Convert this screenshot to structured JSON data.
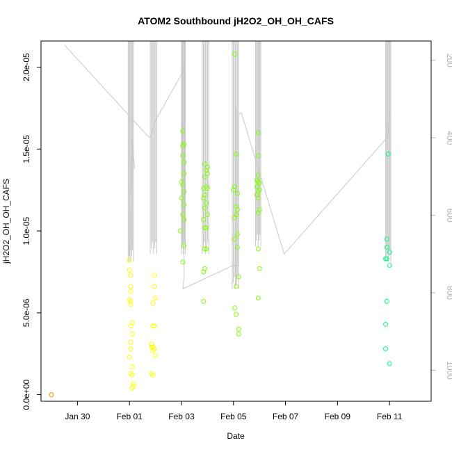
{
  "chart_data": {
    "type": "scatter",
    "title": "ATOM2 Southbound jH2O2_OH_OH_CAFS",
    "xlabel": "Date",
    "ylabel": "jH2O2_OH_OH_CAFS",
    "x_ticks": [
      "Jan 30",
      "Feb 01",
      "Feb 03",
      "Feb 05",
      "Feb 07",
      "Feb 09",
      "Feb 11"
    ],
    "x_tick_days": [
      30,
      32,
      34,
      36,
      38,
      40,
      42
    ],
    "xlim_days": [
      28.6,
      43.6
    ],
    "y_ticks": [
      "0.0e+00",
      "5.0e-06",
      "1.0e-05",
      "1.5e-05",
      "2.0e-05"
    ],
    "y_tick_values": [
      0,
      5e-06,
      1e-05,
      1.5e-05,
      2e-05
    ],
    "ylim": [
      -4e-07,
      2.16e-05
    ],
    "right_axis": {
      "ticks": [
        "200",
        "400",
        "600",
        "800",
        "1000"
      ],
      "tick_values": [
        200,
        400,
        600,
        800,
        1000
      ],
      "ylim": [
        1080,
        150
      ],
      "color": "#b0b0b0"
    },
    "grid": false,
    "legend": "none",
    "marker": "open-circle",
    "color_scale": [
      "#ff8c00",
      "#ffff00",
      "#80ff00",
      "#00ff80",
      "#00ffc0"
    ],
    "secondary_line_color": "#c8c8c8",
    "points": [
      {
        "x": 29.0,
        "y": 0.0,
        "c": 0
      },
      {
        "x": 32.0,
        "y": 8.2e-06,
        "c": 1
      },
      {
        "x": 32.0,
        "y": 7.6e-06,
        "c": 1
      },
      {
        "x": 32.05,
        "y": 7.3e-06,
        "c": 1
      },
      {
        "x": 32.05,
        "y": 6.6e-06,
        "c": 1
      },
      {
        "x": 32.05,
        "y": 6.3e-06,
        "c": 1
      },
      {
        "x": 32.0,
        "y": 5.8e-06,
        "c": 1
      },
      {
        "x": 32.05,
        "y": 5.7e-06,
        "c": 1
      },
      {
        "x": 32.05,
        "y": 5.5e-06,
        "c": 1
      },
      {
        "x": 32.1,
        "y": 4.4e-06,
        "c": 1
      },
      {
        "x": 32.05,
        "y": 4.2e-06,
        "c": 1
      },
      {
        "x": 32.1,
        "y": 3.7e-06,
        "c": 1
      },
      {
        "x": 32.05,
        "y": 3.2e-06,
        "c": 1
      },
      {
        "x": 32.05,
        "y": 2.8e-06,
        "c": 1
      },
      {
        "x": 32.0,
        "y": 2.3e-06,
        "c": 1
      },
      {
        "x": 32.1,
        "y": 1.7e-06,
        "c": 1
      },
      {
        "x": 32.05,
        "y": 1.3e-06,
        "c": 1
      },
      {
        "x": 32.1,
        "y": 1.2e-06,
        "c": 1
      },
      {
        "x": 32.15,
        "y": 7e-07,
        "c": 1
      },
      {
        "x": 32.15,
        "y": 5e-07,
        "c": 1
      },
      {
        "x": 32.1,
        "y": 4e-07,
        "c": 1
      },
      {
        "x": 32.95,
        "y": 7.3e-06,
        "c": 1
      },
      {
        "x": 32.95,
        "y": 6.6e-06,
        "c": 1
      },
      {
        "x": 33.0,
        "y": 5.9e-06,
        "c": 1
      },
      {
        "x": 32.9,
        "y": 5.6e-06,
        "c": 1
      },
      {
        "x": 32.9,
        "y": 4.2e-06,
        "c": 1
      },
      {
        "x": 32.95,
        "y": 4.2e-06,
        "c": 1
      },
      {
        "x": 32.85,
        "y": 3.1e-06,
        "c": 1
      },
      {
        "x": 32.9,
        "y": 2.9e-06,
        "c": 1
      },
      {
        "x": 32.95,
        "y": 2.8e-06,
        "c": 1
      },
      {
        "x": 32.85,
        "y": 2.9e-06,
        "c": 1
      },
      {
        "x": 32.9,
        "y": 2.7e-06,
        "c": 1
      },
      {
        "x": 33.0,
        "y": 2.4e-06,
        "c": 1
      },
      {
        "x": 32.85,
        "y": 1.3e-06,
        "c": 1
      },
      {
        "x": 32.9,
        "y": 1.2e-06,
        "c": 1
      },
      {
        "x": 34.05,
        "y": 1.61e-05,
        "c": 2
      },
      {
        "x": 34.05,
        "y": 1.52e-05,
        "c": 2
      },
      {
        "x": 34.1,
        "y": 1.53e-05,
        "c": 2
      },
      {
        "x": 34.05,
        "y": 1.46e-05,
        "c": 2
      },
      {
        "x": 34.1,
        "y": 1.42e-05,
        "c": 2
      },
      {
        "x": 34.1,
        "y": 1.35e-05,
        "c": 2
      },
      {
        "x": 34.0,
        "y": 1.3e-05,
        "c": 2
      },
      {
        "x": 34.05,
        "y": 1.28e-05,
        "c": 2
      },
      {
        "x": 34.1,
        "y": 1.24e-05,
        "c": 2
      },
      {
        "x": 34.0,
        "y": 1.2e-05,
        "c": 2
      },
      {
        "x": 34.1,
        "y": 1.16e-05,
        "c": 2
      },
      {
        "x": 34.05,
        "y": 1.1e-05,
        "c": 2
      },
      {
        "x": 34.1,
        "y": 1.07e-05,
        "c": 2
      },
      {
        "x": 33.95,
        "y": 1e-05,
        "c": 2
      },
      {
        "x": 34.1,
        "y": 9.1e-06,
        "c": 2
      },
      {
        "x": 34.05,
        "y": 8.1e-06,
        "c": 2
      },
      {
        "x": 34.9,
        "y": 1.41e-05,
        "c": 2
      },
      {
        "x": 35.0,
        "y": 1.39e-05,
        "c": 2
      },
      {
        "x": 34.95,
        "y": 1.37e-05,
        "c": 2
      },
      {
        "x": 35.0,
        "y": 1.35e-05,
        "c": 2
      },
      {
        "x": 34.9,
        "y": 1.33e-05,
        "c": 2
      },
      {
        "x": 34.95,
        "y": 1.27e-05,
        "c": 2
      },
      {
        "x": 34.85,
        "y": 1.26e-05,
        "c": 2
      },
      {
        "x": 35.0,
        "y": 1.26e-05,
        "c": 2
      },
      {
        "x": 34.9,
        "y": 1.22e-05,
        "c": 2
      },
      {
        "x": 34.85,
        "y": 1.2e-05,
        "c": 2
      },
      {
        "x": 34.95,
        "y": 1.17e-05,
        "c": 2
      },
      {
        "x": 34.9,
        "y": 1.14e-05,
        "c": 2
      },
      {
        "x": 35.0,
        "y": 1.1e-05,
        "c": 2
      },
      {
        "x": 34.85,
        "y": 1.07e-05,
        "c": 2
      },
      {
        "x": 34.95,
        "y": 1.02e-05,
        "c": 2
      },
      {
        "x": 34.9,
        "y": 1.02e-05,
        "c": 2
      },
      {
        "x": 34.95,
        "y": 8.9e-06,
        "c": 2
      },
      {
        "x": 34.9,
        "y": 8.9e-06,
        "c": 2
      },
      {
        "x": 34.9,
        "y": 7.7e-06,
        "c": 2
      },
      {
        "x": 34.85,
        "y": 7.5e-06,
        "c": 2
      },
      {
        "x": 34.85,
        "y": 5.7e-06,
        "c": 2
      },
      {
        "x": 36.05,
        "y": 2.08e-05,
        "c": 2
      },
      {
        "x": 36.1,
        "y": 1.47e-05,
        "c": 2
      },
      {
        "x": 36.05,
        "y": 1.27e-05,
        "c": 2
      },
      {
        "x": 36.0,
        "y": 1.25e-05,
        "c": 2
      },
      {
        "x": 36.15,
        "y": 1.23e-05,
        "c": 2
      },
      {
        "x": 36.1,
        "y": 1.15e-05,
        "c": 2
      },
      {
        "x": 36.15,
        "y": 1.13e-05,
        "c": 2
      },
      {
        "x": 36.1,
        "y": 1.1e-05,
        "c": 2
      },
      {
        "x": 36.05,
        "y": 1.08e-05,
        "c": 2
      },
      {
        "x": 36.15,
        "y": 9.8e-06,
        "c": 2
      },
      {
        "x": 36.05,
        "y": 9.5e-06,
        "c": 2
      },
      {
        "x": 36.15,
        "y": 9e-06,
        "c": 2
      },
      {
        "x": 36.2,
        "y": 7.2e-06,
        "c": 2
      },
      {
        "x": 36.1,
        "y": 6.6e-06,
        "c": 2
      },
      {
        "x": 36.05,
        "y": 5.3e-06,
        "c": 2
      },
      {
        "x": 36.1,
        "y": 4.9e-06,
        "c": 2
      },
      {
        "x": 36.2,
        "y": 4e-06,
        "c": 2
      },
      {
        "x": 36.2,
        "y": 3.7e-06,
        "c": 2
      },
      {
        "x": 36.95,
        "y": 1.6e-05,
        "c": 2
      },
      {
        "x": 36.95,
        "y": 1.46e-05,
        "c": 2
      },
      {
        "x": 36.95,
        "y": 1.34e-05,
        "c": 2
      },
      {
        "x": 36.9,
        "y": 1.31e-05,
        "c": 2
      },
      {
        "x": 36.95,
        "y": 1.3e-05,
        "c": 2
      },
      {
        "x": 37.0,
        "y": 1.29e-05,
        "c": 2
      },
      {
        "x": 36.9,
        "y": 1.27e-05,
        "c": 2
      },
      {
        "x": 37.0,
        "y": 1.25e-05,
        "c": 2
      },
      {
        "x": 36.95,
        "y": 1.24e-05,
        "c": 2
      },
      {
        "x": 36.9,
        "y": 1.22e-05,
        "c": 2
      },
      {
        "x": 36.95,
        "y": 1.2e-05,
        "c": 2
      },
      {
        "x": 37.0,
        "y": 1.13e-05,
        "c": 2
      },
      {
        "x": 36.95,
        "y": 1.11e-05,
        "c": 2
      },
      {
        "x": 36.95,
        "y": 8.9e-06,
        "c": 2
      },
      {
        "x": 37.0,
        "y": 7.7e-06,
        "c": 2
      },
      {
        "x": 36.95,
        "y": 5.9e-06,
        "c": 2
      },
      {
        "x": 41.95,
        "y": 1.47e-05,
        "c": 3
      },
      {
        "x": 41.9,
        "y": 9.5e-06,
        "c": 3
      },
      {
        "x": 41.9,
        "y": 9e-06,
        "c": 3
      },
      {
        "x": 42.0,
        "y": 8.7e-06,
        "c": 3
      },
      {
        "x": 41.85,
        "y": 8.3e-06,
        "c": 3
      },
      {
        "x": 41.9,
        "y": 8.3e-06,
        "c": 3
      },
      {
        "x": 42.0,
        "y": 7.9e-06,
        "c": 3
      },
      {
        "x": 41.9,
        "y": 5.7e-06,
        "c": 3
      },
      {
        "x": 41.85,
        "y": 4.3e-06,
        "c": 3
      },
      {
        "x": 41.85,
        "y": 2.8e-06,
        "c": 3
      },
      {
        "x": 42.0,
        "y": 1.9e-06,
        "c": 3
      }
    ]
  }
}
